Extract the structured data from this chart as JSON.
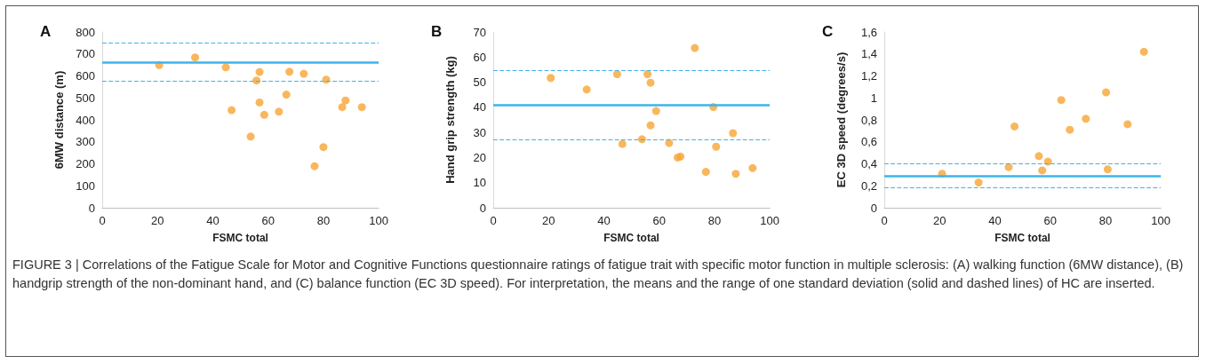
{
  "chart_data": [
    {
      "type": "scatter",
      "title": "A",
      "xlabel": "FSMC total",
      "ylabel": "6MW distance (m)",
      "xlim": [
        0,
        100
      ],
      "xticks": [
        0,
        20,
        40,
        60,
        80,
        100
      ],
      "ylim": [
        0,
        800
      ],
      "yticks": [
        0,
        100,
        200,
        300,
        400,
        500,
        600,
        700,
        800
      ],
      "grid": false,
      "marker": "circle",
      "series": [
        {
          "color": "#f7a535",
          "x": [
            20.6,
            33.6,
            44.7,
            46.8,
            53.7,
            55.8,
            56.9,
            56.9,
            58.6,
            63.9,
            66.6,
            67.7,
            72.9,
            76.8,
            80,
            81,
            86.8,
            88,
            93.9
          ],
          "values": [
            649,
            684,
            639,
            444,
            324,
            579,
            618,
            479,
            423,
            437,
            515,
            619,
            610,
            189,
            276,
            583,
            458,
            488,
            458
          ]
        }
      ],
      "ref_lines": [
        {
          "axis": "y",
          "value": 660,
          "color": "#3db4ea",
          "line_style": "solid"
        },
        {
          "axis": "y",
          "value": 750,
          "color": "#3db4ea",
          "line_style": "dashed"
        },
        {
          "axis": "y",
          "value": 575,
          "color": "#3db4ea",
          "line_style": "dashed"
        }
      ]
    },
    {
      "type": "scatter",
      "title": "B",
      "xlabel": "FSMC total",
      "ylabel": "Hand grip strength (kg)",
      "xlim": [
        0,
        100
      ],
      "xticks": [
        0,
        20,
        40,
        60,
        80,
        100
      ],
      "ylim": [
        0,
        70
      ],
      "yticks": [
        0,
        10,
        20,
        30,
        40,
        50,
        60,
        70
      ],
      "grid": false,
      "marker": "circle",
      "series": [
        {
          "color": "#f7a535",
          "x": [
            20.8,
            33.8,
            44.8,
            46.7,
            53.8,
            55.8,
            56.9,
            56.9,
            58.9,
            63.6,
            66.7,
            67.7,
            72.9,
            76.9,
            79.6,
            80.6,
            86.7,
            87.7,
            93.8
          ],
          "values": [
            51.7,
            47.1,
            53.2,
            25.4,
            27.3,
            53.2,
            49.8,
            32.8,
            38.5,
            25.8,
            20.0,
            20.4,
            63.6,
            14.3,
            40.1,
            24.3,
            29.7,
            13.5,
            15.8
          ]
        }
      ],
      "ref_lines": [
        {
          "axis": "y",
          "value": 41,
          "color": "#3db4ea",
          "line_style": "solid"
        },
        {
          "axis": "y",
          "value": 54.7,
          "color": "#3db4ea",
          "line_style": "dashed"
        },
        {
          "axis": "y",
          "value": 27.3,
          "color": "#3db4ea",
          "line_style": "dashed"
        }
      ]
    },
    {
      "type": "scatter",
      "title": "C",
      "xlabel": "FSMC total",
      "ylabel": "EC 3D speed (degrees/s)",
      "xlim": [
        0,
        100
      ],
      "xticks": [
        0,
        20,
        40,
        60,
        80,
        100
      ],
      "ylim": [
        0,
        1.6
      ],
      "yticks": [
        0,
        {
          "value": 0.2,
          "label": "0,2"
        },
        {
          "value": 0.4,
          "label": "0,4"
        },
        {
          "value": 0.6,
          "label": "0,6"
        },
        {
          "value": 0.8,
          "label": "0,8"
        },
        1,
        {
          "value": 1.2,
          "label": "1,2"
        },
        {
          "value": 1.4,
          "label": "1,4"
        },
        {
          "value": 1.6,
          "label": "1,6"
        }
      ],
      "grid": false,
      "marker": "circle",
      "series": [
        {
          "color": "#f7a535",
          "x": [
            20.9,
            34.1,
            45,
            47.1,
            55.9,
            57.1,
            59.2,
            64,
            67.1,
            72.9,
            80.2,
            80.8,
            88,
            93.9
          ],
          "values": [
            0.31,
            0.23,
            0.37,
            0.74,
            0.47,
            0.34,
            0.42,
            0.98,
            0.71,
            0.81,
            1.05,
            0.35,
            0.76,
            1.42
          ]
        }
      ],
      "ref_lines": [
        {
          "axis": "y",
          "value": 0.29,
          "color": "#3db4ea",
          "line_style": "solid"
        },
        {
          "axis": "y",
          "value": 0.4,
          "color": "#3db4ea",
          "line_style": "dashed"
        },
        {
          "axis": "y",
          "value": 0.18,
          "color": "#3db4ea",
          "line_style": "dashed"
        }
      ],
      "annotations": [
        "FIGURE 3 | Correlations of the Fatigue Scale for Motor and Cognitive Functions questionnaire ratings of fatigue trait with specific motor function in multiple sclerosis: (A) walking function (6MW distance), (B) handgrip strength of the non-dominant hand, and (C) balance function (EC 3D speed). For interpretation, the means and the range of one standard deviation (solid and dashed lines) of HC are inserted."
      ]
    }
  ]
}
